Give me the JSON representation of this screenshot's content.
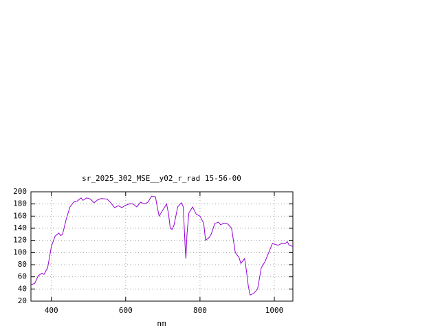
{
  "chart_data": {
    "type": "line",
    "title": "sr_2025_302_MSE__y02_r_rad 15-56-00",
    "x_label": "nm",
    "xlim": [
      345,
      1050
    ],
    "ylim": [
      20,
      200
    ],
    "xticks": [
      400,
      600,
      800,
      1000
    ],
    "yticks": [
      20,
      40,
      60,
      80,
      100,
      120,
      140,
      160,
      180,
      200
    ],
    "grid": true,
    "series": [
      {
        "color": "#9400d3",
        "x": [
          345,
          355,
          365,
          375,
          380,
          390,
          400,
          410,
          420,
          425,
          430,
          440,
          450,
          460,
          470,
          480,
          485,
          495,
          505,
          515,
          525,
          535,
          550,
          560,
          570,
          580,
          590,
          600,
          610,
          620,
          630,
          640,
          650,
          660,
          670,
          680,
          685,
          690,
          700,
          710,
          715,
          720,
          725,
          730,
          740,
          750,
          755,
          760,
          762,
          765,
          770,
          780,
          790,
          800,
          810,
          815,
          825,
          830,
          840,
          850,
          855,
          865,
          875,
          885,
          895,
          905,
          910,
          920,
          925,
          930,
          935,
          945,
          955,
          965,
          975,
          985,
          995,
          1005,
          1010,
          1020,
          1030,
          1035,
          1040,
          1050
        ],
        "values": [
          47,
          49,
          62,
          66,
          64,
          75,
          110,
          127,
          132,
          128,
          130,
          155,
          175,
          183,
          185,
          190,
          186,
          190,
          188,
          182,
          187,
          189,
          188,
          182,
          174,
          177,
          174,
          178,
          180,
          180,
          175,
          183,
          180,
          183,
          193,
          192,
          175,
          160,
          170,
          180,
          165,
          140,
          138,
          145,
          175,
          182,
          175,
          110,
          90,
          130,
          165,
          175,
          163,
          160,
          148,
          120,
          125,
          130,
          148,
          150,
          146,
          148,
          147,
          140,
          100,
          92,
          82,
          90,
          70,
          45,
          30,
          33,
          40,
          75,
          85,
          100,
          115,
          113,
          112,
          115,
          115,
          118,
          112,
          110
        ]
      }
    ]
  }
}
